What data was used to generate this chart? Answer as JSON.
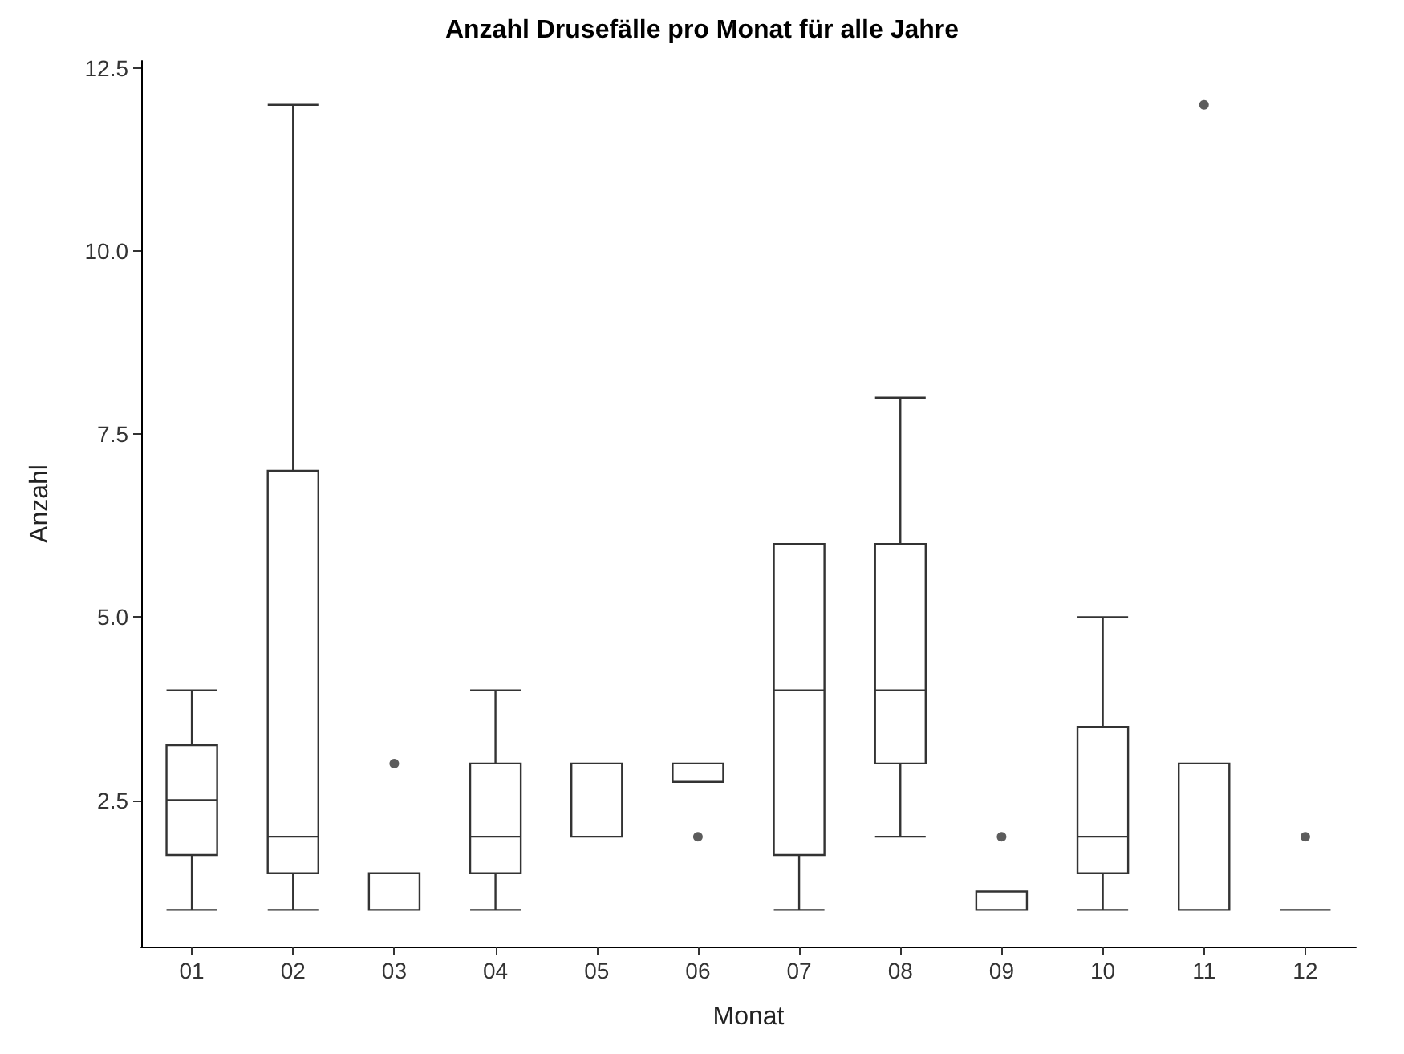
{
  "chart_data": {
    "type": "box",
    "title": "Anzahl Drusefälle pro Monat für alle Jahre",
    "xlabel": "Monat",
    "ylabel": "Anzahl",
    "categories": [
      "01",
      "02",
      "03",
      "04",
      "05",
      "06",
      "07",
      "08",
      "09",
      "10",
      "11",
      "12"
    ],
    "color": "#333333",
    "boxes": [
      {
        "low": 1,
        "q1": 1.75,
        "median": 2.5,
        "q3": 3.25,
        "high": 4
      },
      {
        "low": 1,
        "q1": 1.5,
        "median": 2,
        "q3": 7,
        "high": 12
      },
      {
        "low": 1,
        "q1": 1,
        "median": 1,
        "q3": 1.5,
        "high": 1.5,
        "outliers": [
          3
        ]
      },
      {
        "low": 1,
        "q1": 1.5,
        "median": 2,
        "q3": 3,
        "high": 4
      },
      {
        "low": 2,
        "q1": 2,
        "median": 2,
        "q3": 3,
        "high": 3
      },
      {
        "low": 2.75,
        "q1": 2.75,
        "median": 3,
        "q3": 3,
        "high": 3,
        "outliers": [
          2
        ]
      },
      {
        "low": 1,
        "q1": 1.75,
        "median": 4,
        "q3": 6,
        "high": 6
      },
      {
        "low": 2,
        "q1": 3,
        "median": 4,
        "q3": 6,
        "high": 8
      },
      {
        "low": 1,
        "q1": 1,
        "median": 1,
        "q3": 1.25,
        "high": 1.25,
        "outliers": [
          2
        ]
      },
      {
        "low": 1,
        "q1": 1.5,
        "median": 2,
        "q3": 3.5,
        "high": 5
      },
      {
        "low": 1,
        "q1": 1,
        "median": 1,
        "q3": 3,
        "high": 3,
        "outliers": [
          12
        ]
      },
      {
        "low": 1,
        "q1": 1,
        "median": 1,
        "q3": 1,
        "high": 1,
        "outliers": [
          2
        ]
      }
    ],
    "ylim": [
      0.5,
      12.6
    ],
    "yticks": [
      {
        "value": 2.5,
        "label": "2.5"
      },
      {
        "value": 5,
        "label": "5.0"
      },
      {
        "value": 7.5,
        "label": "7.5"
      },
      {
        "value": 10,
        "label": "10.0"
      },
      {
        "value": 12.5,
        "label": "12.5"
      }
    ],
    "grid": false
  }
}
